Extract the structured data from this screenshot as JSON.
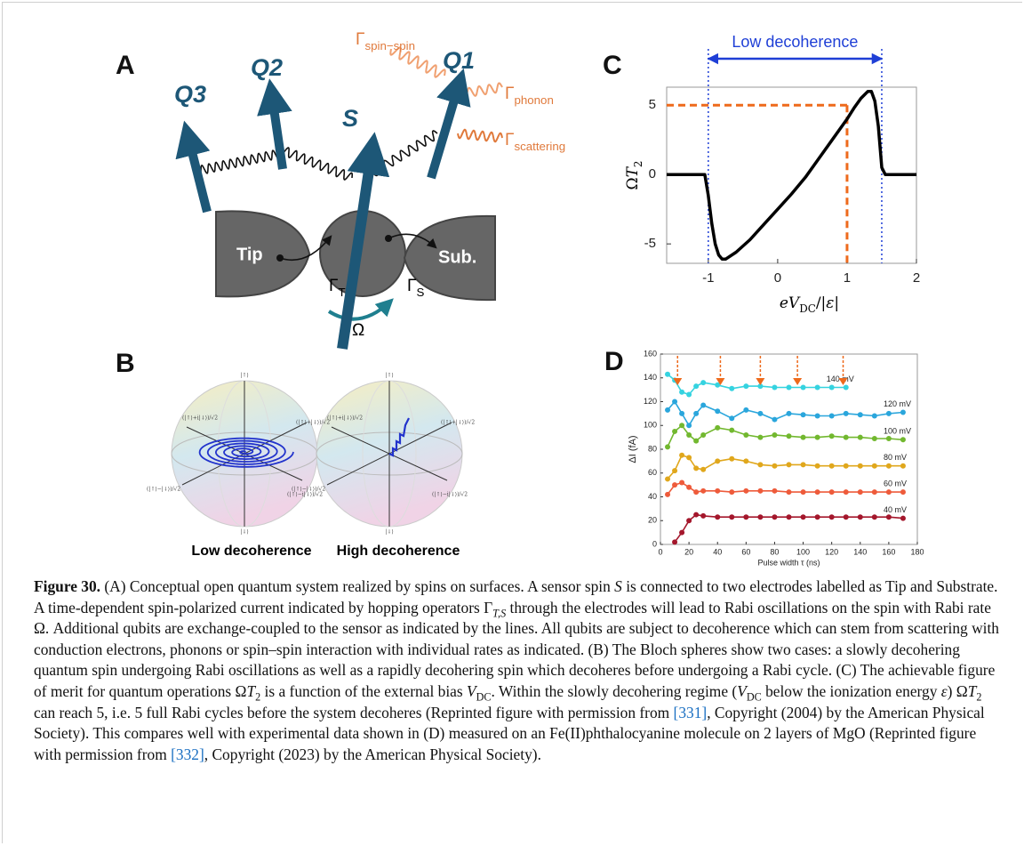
{
  "panel_a": {
    "label": "A",
    "qubits": [
      "Q3",
      "Q2",
      "S",
      "Q1"
    ],
    "tip": "Tip",
    "substrate": "Sub.",
    "gamma_spin_spin": [
      {
        "text": "Γ"
      },
      {
        "text": "spin−spin",
        "style": "sub"
      }
    ],
    "gamma_phonon": [
      {
        "text": "Γ"
      },
      {
        "text": "phonon",
        "style": "sub"
      }
    ],
    "gamma_scattering": [
      {
        "text": "Γ"
      },
      {
        "text": "scattering",
        "style": "sub"
      }
    ],
    "gamma_t": [
      {
        "text": "Γ"
      },
      {
        "text": "T",
        "style": "sub"
      }
    ],
    "gamma_s": [
      {
        "text": "Γ"
      },
      {
        "text": "S",
        "style": "sub"
      }
    ],
    "omega": "Ω"
  },
  "panel_b": {
    "label": "B",
    "kets": [
      "|↑⟩",
      "|↓⟩",
      "(|↑⟩+|↓⟩)/√2",
      "(|↑⟩−|↓⟩)/√2",
      "(|↑⟩+i|↓⟩)/√2",
      "(|↑⟩−i|↓⟩)/√2"
    ],
    "left_caption": "Low decoherence",
    "right_caption": "High decoherence"
  },
  "chart_data": [
    {
      "type": "line",
      "panel": "C",
      "annotation": "Low decoherence",
      "x_label": [
        {
          "text": "eV",
          "style": "italic"
        },
        {
          "text": "DC",
          "style": "sub"
        },
        {
          "text": "/|"
        },
        {
          "text": "ε",
          "style": "italic"
        },
        {
          "text": "|"
        }
      ],
      "y_label": [
        {
          "text": "Ω"
        },
        {
          "text": "T",
          "style": "italic"
        },
        {
          "text": "2",
          "style": "sub"
        }
      ],
      "x": [
        -1.6,
        -1.05,
        -1,
        -0.95,
        -0.9,
        -0.85,
        -0.8,
        -0.75,
        -0.6,
        -0.4,
        -0.2,
        0,
        0.2,
        0.4,
        0.6,
        0.8,
        1,
        1.1,
        1.2,
        1.3,
        1.35,
        1.4,
        1.45,
        1.5,
        1.55,
        2
      ],
      "values": [
        0,
        0,
        -1.5,
        -3.5,
        -5,
        -5.8,
        -6.1,
        -6.1,
        -5.6,
        -4.7,
        -3.6,
        -2.5,
        -1.4,
        -0.2,
        1.2,
        2.6,
        4.0,
        4.8,
        5.5,
        6.0,
        6.0,
        5.3,
        3.5,
        0.5,
        0,
        0
      ],
      "color": "#000000",
      "xlim": [
        -1.6,
        2
      ],
      "ylim": [
        -6.4,
        6.3
      ],
      "xticks": [
        -1,
        0,
        1,
        2
      ],
      "yticks": [
        -5,
        0,
        5
      ],
      "low_decoherence_range": [
        -1,
        1.5
      ],
      "marker": {
        "x": 1,
        "y": 5
      }
    },
    {
      "type": "line",
      "panel": "D",
      "x_label": "Pulse width τ (ns)",
      "y_label": "ΔI (fA)",
      "x": [
        5,
        10,
        15,
        20,
        25,
        30,
        40,
        50,
        60,
        70,
        80,
        90,
        100,
        110,
        120,
        130,
        140,
        150,
        160,
        170
      ],
      "series": [
        {
          "name": "140 mV",
          "color": "#35d3e0",
          "values": [
            143,
            138,
            128,
            126,
            133,
            136,
            134,
            131,
            133,
            133,
            132,
            132,
            132,
            132,
            132,
            132,
            null,
            null,
            null,
            null
          ]
        },
        {
          "name": "120 mV",
          "color": "#2aa6dc",
          "values": [
            113,
            120,
            110,
            100,
            110,
            117,
            112,
            106,
            113,
            110,
            105,
            110,
            109,
            108,
            108,
            110,
            109,
            108,
            110,
            111
          ]
        },
        {
          "name": "100 mV",
          "color": "#72b82f",
          "values": [
            82,
            95,
            100,
            92,
            87,
            92,
            98,
            96,
            92,
            90,
            92,
            91,
            90,
            90,
            91,
            90,
            90,
            89,
            89,
            88
          ]
        },
        {
          "name": "80 mV",
          "color": "#e0a71c",
          "values": [
            55,
            62,
            75,
            73,
            64,
            63,
            70,
            72,
            70,
            67,
            66,
            67,
            67,
            66,
            66,
            66,
            66,
            66,
            66,
            66
          ]
        },
        {
          "name": "60 mV",
          "color": "#ee5b3b",
          "values": [
            42,
            50,
            52,
            48,
            44,
            45,
            45,
            44,
            45,
            45,
            45,
            44,
            44,
            44,
            44,
            44,
            44,
            44,
            44,
            44
          ]
        },
        {
          "name": "40 mV",
          "color": "#a4172c",
          "values": [
            null,
            2,
            10,
            20,
            25,
            24,
            23,
            23,
            23,
            23,
            23,
            23,
            23,
            23,
            23,
            23,
            23,
            23,
            23,
            22
          ]
        }
      ],
      "arrows_x": [
        12,
        42,
        70,
        96,
        128
      ],
      "xlim": [
        0,
        180
      ],
      "ylim": [
        0,
        160
      ],
      "xticks": [
        0,
        20,
        40,
        60,
        80,
        100,
        120,
        140,
        160,
        180
      ],
      "yticks": [
        0,
        20,
        40,
        60,
        80,
        100,
        120,
        140,
        160
      ]
    }
  ],
  "caption": [
    {
      "text": "Figure 30.",
      "style": "bold"
    },
    {
      "text": " (A) Conceptual open quantum system realized by spins on surfaces. A sensor spin "
    },
    {
      "text": "S",
      "style": "italic"
    },
    {
      "text": " is connected to two electrodes labelled as Tip and Substrate. A time-dependent spin-polarized current indicated by hopping operators Γ"
    },
    {
      "text": "T,S",
      "style": "sub-italic"
    },
    {
      "text": " through the electrodes will lead to Rabi oscillations on the spin with Rabi rate Ω. Additional qubits are exchange-coupled to the sensor as indicated by the lines. All qubits are subject to decoherence which can stem from scattering with conduction electrons, phonons or spin–spin interaction with individual rates as indicated. (B) The Bloch spheres show two cases: a slowly decohering quantum spin undergoing Rabi oscillations as well as a rapidly decohering spin which decoheres before undergoing a Rabi cycle. (C) The achievable figure of merit for quantum operations Ω"
    },
    {
      "text": "T",
      "style": "italic"
    },
    {
      "text": "2",
      "style": "sub"
    },
    {
      "text": " is a function of the external bias "
    },
    {
      "text": "V",
      "style": "italic"
    },
    {
      "text": "DC",
      "style": "sub"
    },
    {
      "text": ". Within the slowly decohering regime ("
    },
    {
      "text": "V",
      "style": "italic"
    },
    {
      "text": "DC",
      "style": "sub"
    },
    {
      "text": " below the ionization energy "
    },
    {
      "text": "ε",
      "style": "italic"
    },
    {
      "text": ") Ω"
    },
    {
      "text": "T",
      "style": "italic"
    },
    {
      "text": "2",
      "style": "sub"
    },
    {
      "text": " can reach 5, i.e. 5 full Rabi cycles before the system decoheres (Reprinted figure with permission from "
    },
    {
      "text": "[331]",
      "style": "link"
    },
    {
      "text": ", Copyright (2004) by the American Physical Society). This compares well with experimental data shown in (D) measured on an Fe(II)phthalocyanine molecule on 2 layers of MgO (Reprinted figure with permission from "
    },
    {
      "text": "[332]",
      "style": "link"
    },
    {
      "text": ", Copyright (2023) by the American Physical Society)."
    }
  ]
}
